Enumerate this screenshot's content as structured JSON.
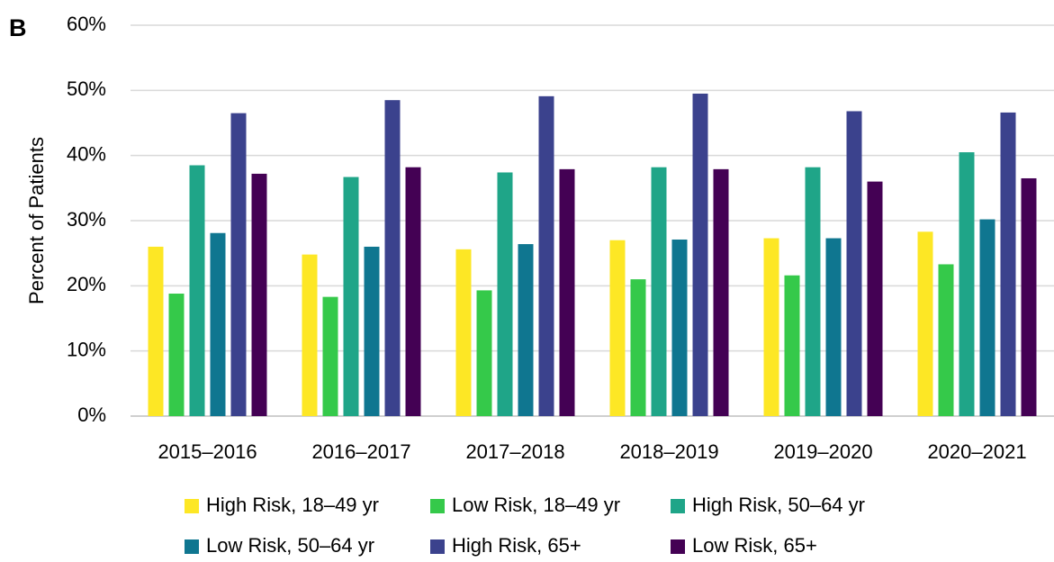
{
  "chart_data": {
    "type": "bar",
    "panel_label": "B",
    "y_label": "Percent of Patients",
    "categories": [
      "2015–2016",
      "2016–2017",
      "2017–2018",
      "2018–2019",
      "2019–2020",
      "2020–2021"
    ],
    "series": [
      {
        "name": "High Risk, 18–49 yr",
        "color": "#fde725",
        "values": [
          26,
          24.8,
          25.6,
          27,
          27.3,
          28.3
        ]
      },
      {
        "name": "Low Risk, 18–49 yr",
        "color": "#35c94a",
        "values": [
          18.8,
          18.3,
          19.3,
          21,
          21.6,
          23.3
        ]
      },
      {
        "name": "High Risk, 50–64 yr",
        "color": "#1fa588",
        "values": [
          38.5,
          36.7,
          37.4,
          38.2,
          38.2,
          40.5
        ]
      },
      {
        "name": "Low Risk, 50–64 yr",
        "color": "#0f7690",
        "values": [
          28.1,
          26,
          26.4,
          27.1,
          27.3,
          30.2
        ]
      },
      {
        "name": "High Risk, 65+",
        "color": "#3b428d",
        "values": [
          46.5,
          48.5,
          49.1,
          49.5,
          46.8,
          46.6
        ]
      },
      {
        "name": "Low Risk, 65+",
        "color": "#440154",
        "values": [
          37.2,
          38.2,
          37.9,
          37.9,
          36,
          36.5
        ]
      }
    ],
    "ylim": [
      0,
      60
    ],
    "yticks": [
      {
        "value": 0,
        "label": "0%"
      },
      {
        "value": 10,
        "label": "10%"
      },
      {
        "value": 20,
        "label": "20%"
      },
      {
        "value": 30,
        "label": "30%"
      },
      {
        "value": 40,
        "label": "40%"
      },
      {
        "value": 50,
        "label": "50%"
      },
      {
        "value": 60,
        "label": "60%"
      }
    ],
    "grid": true,
    "legend": "bottom"
  }
}
